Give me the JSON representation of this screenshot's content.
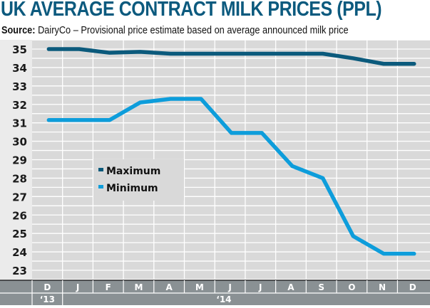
{
  "chart_data": {
    "type": "line",
    "title": "UK AVERAGE CONTRACT MILK PRICES (PPL)",
    "source_label": "Source:",
    "source_text": "DairyCo – Provisional price estimate based on average announced milk price",
    "xlabel": "",
    "ylabel": "",
    "categories": [
      "D",
      "J",
      "F",
      "M",
      "A",
      "M",
      "J",
      "J",
      "A",
      "S",
      "O",
      "N",
      "D"
    ],
    "year_labels": [
      {
        "label": "‘13",
        "start_index": 0,
        "span": 1
      },
      {
        "label": "‘14",
        "start_index": 1,
        "span": 12
      }
    ],
    "ylim": [
      22.5,
      35.5
    ],
    "yticks": [
      23,
      24,
      25,
      26,
      27,
      28,
      29,
      30,
      31,
      32,
      33,
      34,
      35
    ],
    "grid": true,
    "grid_minor_step": 0.5,
    "legend_position": "center-left",
    "series": [
      {
        "name": "Maximum",
        "color": "#0b5a7c",
        "values": [
          35.0,
          35.0,
          34.8,
          34.85,
          34.75,
          34.75,
          34.75,
          34.75,
          34.75,
          34.75,
          34.5,
          34.2,
          34.2
        ]
      },
      {
        "name": "Minimum",
        "color": "#0d9ddb",
        "values": [
          31.15,
          31.15,
          31.15,
          32.1,
          32.3,
          32.3,
          30.45,
          30.45,
          28.65,
          28.0,
          24.85,
          23.9,
          23.9
        ]
      }
    ]
  },
  "colors": {
    "title": "#0c5a7e",
    "plot_bg": "#d9d9d9",
    "axis_bg": "#ebebeb",
    "footer_bg": "#8a9194"
  }
}
